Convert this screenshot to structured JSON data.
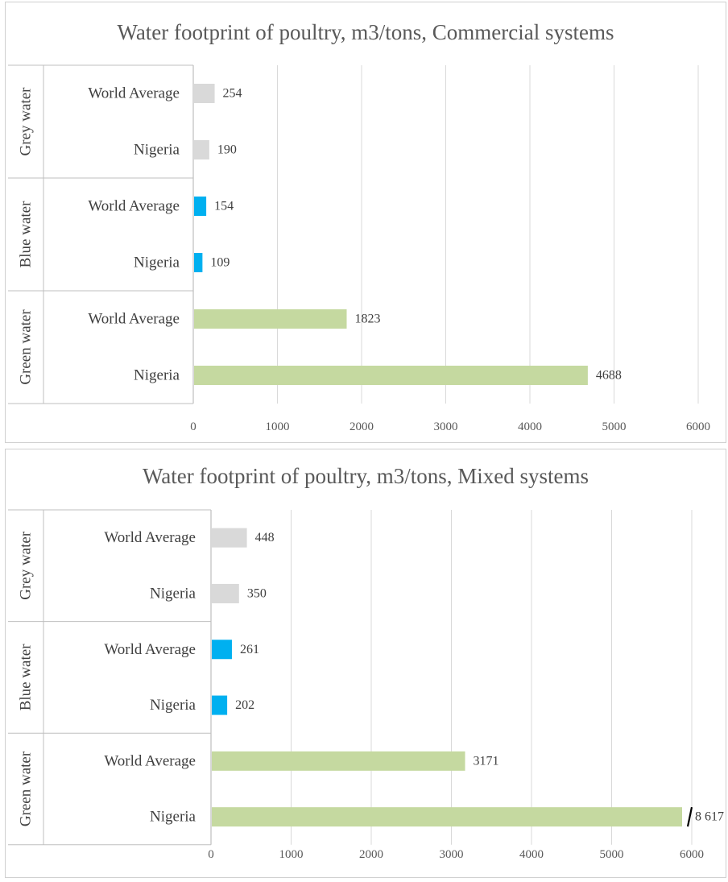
{
  "chart_data": [
    {
      "type": "bar",
      "orientation": "horizontal",
      "title": "Water footprint of poultry, m3/tons, Commercial systems",
      "groups": [
        "Grey water",
        "Blue water",
        "Green water"
      ],
      "categories": [
        "World Average",
        "Nigeria"
      ],
      "values": [
        [
          254,
          190
        ],
        [
          154,
          109
        ],
        [
          1823,
          4688
        ]
      ],
      "data_labels": [
        [
          "254",
          "190"
        ],
        [
          "154",
          "109"
        ],
        [
          "1823",
          "4688"
        ]
      ],
      "colors": [
        "#d9d9d9",
        "#00b0f0",
        "#c5d9a0"
      ],
      "xlim": [
        0,
        6000
      ],
      "xticks": [
        0,
        1000,
        2000,
        3000,
        4000,
        5000,
        6000
      ],
      "xtick_labels": [
        "0",
        "1000",
        "2000",
        "3000",
        "4000",
        "5000",
        "6000"
      ],
      "grid": true,
      "axis_break": null
    },
    {
      "type": "bar",
      "orientation": "horizontal",
      "title": "Water footprint of poultry, m3/tons, Mixed systems",
      "groups": [
        "Grey water",
        "Blue water",
        "Green water"
      ],
      "categories": [
        "World Average",
        "Nigeria"
      ],
      "values": [
        [
          448,
          350
        ],
        [
          261,
          202
        ],
        [
          3171,
          8617
        ]
      ],
      "data_labels": [
        [
          "448",
          "350"
        ],
        [
          "261",
          "202"
        ],
        [
          "3171",
          "8 617"
        ]
      ],
      "colors": [
        "#d9d9d9",
        "#00b0f0",
        "#c5d9a0"
      ],
      "xlim": [
        0,
        6000
      ],
      "xticks": [
        0,
        1000,
        2000,
        3000,
        4000,
        5000,
        6000
      ],
      "xtick_labels": [
        "0",
        "1000",
        "2000",
        "3000",
        "4000",
        "5000",
        "6000"
      ],
      "grid": true,
      "axis_break": "bar truncated at axis maximum, break mark before label"
    }
  ]
}
